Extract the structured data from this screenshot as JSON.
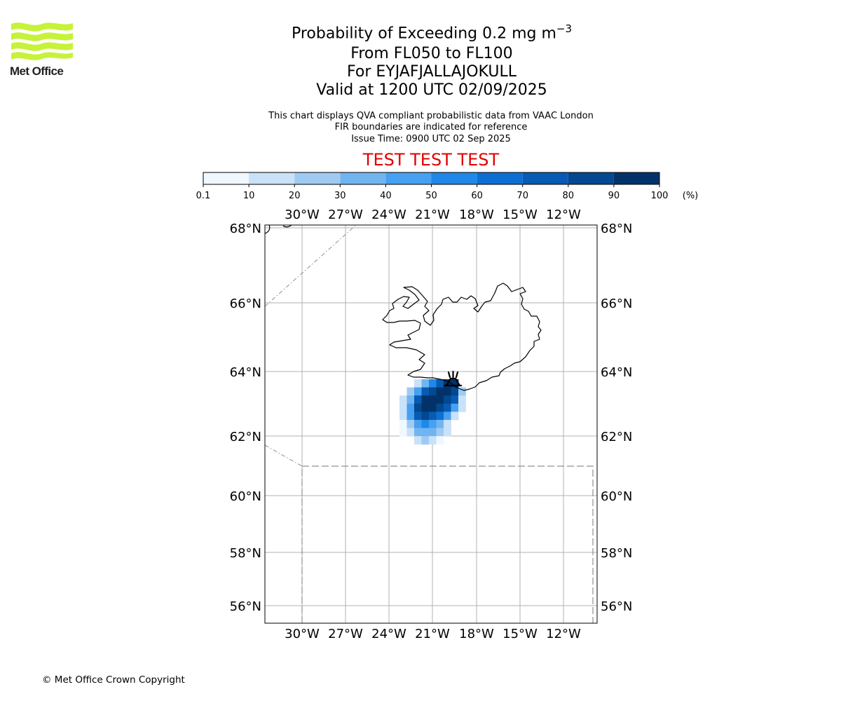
{
  "header": {
    "logo_text": "Met Office",
    "title_main": "Probability of Exceeding 0.2 mg m",
    "title_sup": "−3",
    "title_level": "From FL050 to FL100",
    "title_volcano": "For EYJAFJALLAJOKULL",
    "title_valid": "Valid at 1200 UTC 02/09/2025",
    "subtitle_lines": [
      "This chart displays QVA compliant probabilistic data from VAAC London",
      "FIR boundaries are indicated for reference",
      "Issue Time: 0900 UTC 02 Sep 2025"
    ],
    "test_banner": "TEST TEST TEST"
  },
  "colorbar": {
    "labels": [
      "0.1",
      "10",
      "20",
      "30",
      "40",
      "50",
      "60",
      "70",
      "80",
      "90",
      "100"
    ],
    "unit": "(%)",
    "colors": [
      "#f0f7ff",
      "#c9e2f7",
      "#9fcbf2",
      "#71b5f0",
      "#47a0f0",
      "#1f88e8",
      "#0d6fd4",
      "#075bb3",
      "#034890",
      "#01336a"
    ]
  },
  "map": {
    "lon_labels": [
      "30°W",
      "27°W",
      "24°W",
      "21°W",
      "18°W",
      "15°W",
      "12°W"
    ],
    "lat_labels": [
      "68°N",
      "66°N",
      "64°N",
      "62°N",
      "60°N",
      "58°N",
      "56°N"
    ],
    "volcano_marker": "volcano-icon"
  },
  "footer": {
    "copyright": "© Met Office Crown Copyright"
  }
}
